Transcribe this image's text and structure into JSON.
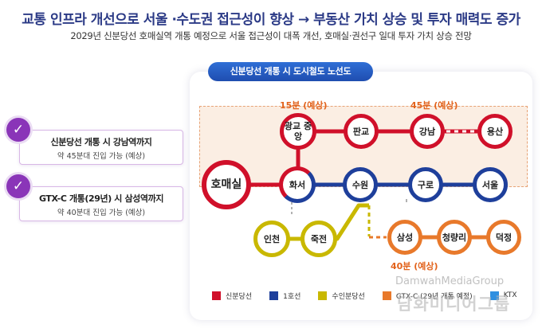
{
  "header": {
    "headline": "교통 인프라 개선으로 서울 ·수도권 접근성이 향상 → 부동산 가치 상승 및 투자 매력도 증가",
    "subline": "2029년 신분당선 호매실역 개통 예정으로 서울 접근성이 대폭 개선, 호매실·권선구 일대 투자 가치 상승 전망"
  },
  "info_cards": [
    {
      "title": "신분당선 개통 시 강남역까지",
      "detail": "약 45분대 진입 가능 (예상)"
    },
    {
      "title": "GTX-C 개통(29년) 시 삼성역까지",
      "detail": "약 40분대 진입 가능 (예상)"
    }
  ],
  "map": {
    "title": "신분당선 개통 시 도시철도 노선도",
    "annotations": {
      "a15": "15분 (예상)",
      "a45": "45분 (예상)",
      "a40": "40분 (예상)"
    },
    "stations": {
      "homaesil": "호매실",
      "gwanggyo": "광교 중앙",
      "hwaseo": "화서",
      "pangyo": "판교",
      "gangnam": "강남",
      "yongsan": "용산",
      "suwon": "수원",
      "guro": "구로",
      "seoul": "서울",
      "incheon": "인천",
      "jukjeon": "죽전",
      "samseong": "삼성",
      "cheongnyangni": "청량리",
      "deokjeong": "덕정"
    }
  },
  "legend": [
    {
      "label": "신분당선",
      "color": "#d0102a"
    },
    {
      "label": "1호선",
      "color": "#1e3f9b"
    },
    {
      "label": "수인분당선",
      "color": "#c9b800"
    },
    {
      "label": "GTX-C (29년 개통 예정)",
      "color": "#e8792b"
    },
    {
      "label": "KTX",
      "color": "#2f8fe0"
    }
  ],
  "watermark": {
    "line1": "DamwahMediaGroup",
    "line2": "담화미디어그룹"
  },
  "colors": {
    "sinbundang": "#d0102a",
    "line1": "#1e3f9b",
    "suinbundang": "#c9b800",
    "gtxc": "#e8792b",
    "ktx": "#2f8fe0",
    "accent": "#8a35b8"
  }
}
